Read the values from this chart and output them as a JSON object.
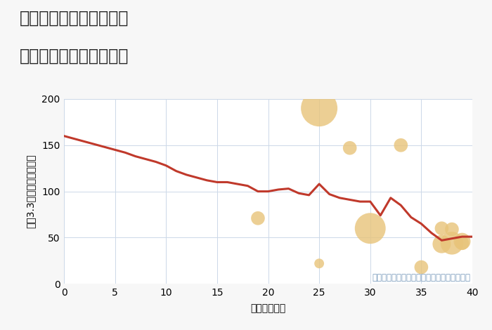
{
  "title_line1": "大阪府東大阪市本庄西の",
  "title_line2": "築年数別中古戸建て価格",
  "xlabel": "築年数（年）",
  "ylabel": "坪（3.3㎡）単価（万円）",
  "bg_color": "#f7f7f7",
  "plot_bg_color": "#ffffff",
  "line_x": [
    0,
    1,
    2,
    3,
    4,
    5,
    6,
    7,
    8,
    9,
    10,
    11,
    12,
    13,
    14,
    15,
    16,
    17,
    18,
    19,
    20,
    21,
    22,
    23,
    24,
    25,
    26,
    27,
    28,
    29,
    30,
    31,
    32,
    33,
    34,
    35,
    36,
    37,
    38,
    39,
    40
  ],
  "line_y": [
    160,
    157,
    154,
    151,
    148,
    145,
    142,
    138,
    135,
    132,
    128,
    122,
    118,
    115,
    112,
    110,
    110,
    108,
    106,
    100,
    100,
    102,
    103,
    98,
    96,
    108,
    97,
    93,
    91,
    89,
    89,
    74,
    93,
    85,
    72,
    65,
    55,
    47,
    49,
    51,
    51
  ],
  "scatter_x": [
    19,
    25,
    25,
    28,
    30,
    33,
    35,
    37,
    37,
    38,
    38,
    39,
    39
  ],
  "scatter_y": [
    71,
    190,
    22,
    147,
    60,
    150,
    18,
    60,
    43,
    59,
    44,
    46,
    44
  ],
  "scatter_sizes": [
    200,
    1400,
    100,
    200,
    1000,
    200,
    200,
    200,
    350,
    200,
    550,
    300,
    200
  ],
  "scatter_color": "#e8c47a",
  "scatter_edge_color": "#d4a840",
  "scatter_alpha": 0.8,
  "line_color": "#c0392b",
  "line_width": 2.2,
  "annotation": "円の大きさは、取引のあった物件面積を示す",
  "annotation_color": "#7799bb",
  "xlim": [
    0,
    40
  ],
  "ylim": [
    0,
    200
  ],
  "xticks": [
    0,
    5,
    10,
    15,
    20,
    25,
    30,
    35,
    40
  ],
  "yticks": [
    0,
    50,
    100,
    150,
    200
  ],
  "grid_color": "#ccd8e8",
  "title_fontsize": 17,
  "axis_label_fontsize": 10,
  "tick_fontsize": 10,
  "annot_fontsize": 8.5
}
